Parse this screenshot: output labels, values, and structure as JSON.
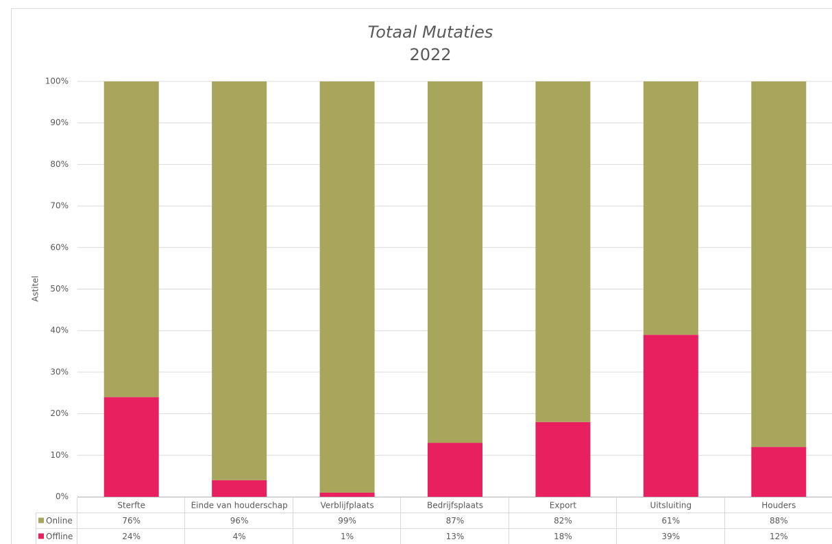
{
  "chart_data": {
    "type": "stacked_bar_100",
    "title": "Totaal Mutaties",
    "subtitle": "2022",
    "y_label": "Astitel",
    "categories": [
      "Sterfte",
      "Einde van houderschap",
      "Verblijfplaats",
      "Bedrijfsplaats",
      "Export",
      "Uitsluiting",
      "Houders"
    ],
    "series": [
      {
        "name": "Online",
        "color": "#a8a55c",
        "values": [
          76,
          96,
          99,
          87,
          82,
          61,
          88
        ],
        "value_labels": [
          "76%",
          "96%",
          "99%",
          "87%",
          "82%",
          "61%",
          "88%"
        ]
      },
      {
        "name": "Offline",
        "color": "#e8205f",
        "values": [
          24,
          4,
          1,
          13,
          18,
          39,
          12
        ],
        "value_labels": [
          "24%",
          "4%",
          "1%",
          "13%",
          "18%",
          "39%",
          "12%"
        ]
      }
    ],
    "ylim": [
      0,
      100
    ],
    "yticks": [
      {
        "value": 0,
        "label": "0%"
      },
      {
        "value": 10,
        "label": "10%"
      },
      {
        "value": 20,
        "label": "20%"
      },
      {
        "value": 30,
        "label": "30%"
      },
      {
        "value": 40,
        "label": "40%"
      },
      {
        "value": 50,
        "label": "50%"
      },
      {
        "value": 60,
        "label": "60%"
      },
      {
        "value": 70,
        "label": "70%"
      },
      {
        "value": 80,
        "label": "80%"
      },
      {
        "value": 90,
        "label": "90%"
      },
      {
        "value": 100,
        "label": "100%"
      }
    ],
    "grid": true,
    "legend": "data-table"
  }
}
